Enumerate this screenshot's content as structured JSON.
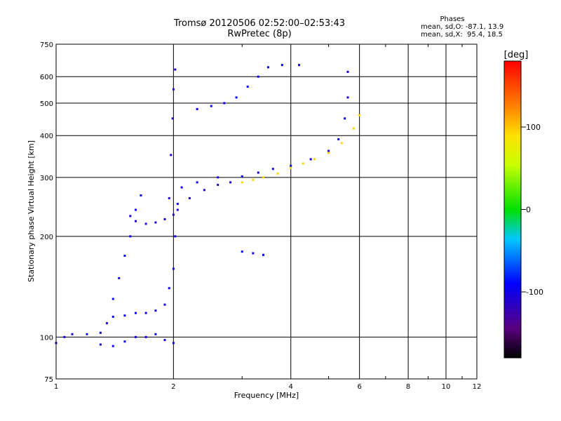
{
  "header": {
    "title": "Tromsø 20120506 02:52:00–02:53:43",
    "subtitle": "RwPretec (8p)"
  },
  "phases": {
    "heading": "Phases",
    "line1": "mean, sd,O: -87.1, 13.9",
    "line2": "mean, sd,X:  95.4, 18.5"
  },
  "colorbar": {
    "unit_label": "[deg]",
    "ticks": [
      "100",
      "0",
      "-100"
    ],
    "tick_values": [
      100,
      0,
      -100
    ],
    "range": [
      -180,
      180
    ]
  },
  "chart_data": {
    "type": "scatter",
    "xlabel": "Frequency [MHz]",
    "ylabel": "Stationary phase Virtual Height [km]",
    "xscale": "log",
    "yscale": "log",
    "xlim": [
      1,
      12
    ],
    "ylim": [
      75,
      750
    ],
    "xticks": [
      1,
      2,
      4,
      6,
      8,
      10,
      12
    ],
    "yticks": [
      75,
      100,
      200,
      300,
      400,
      500,
      600,
      750
    ],
    "grid": true,
    "colorbar": true,
    "traces": [
      {
        "name": "",
        "phase": -100,
        "points": [
          [
            1.0,
            96
          ],
          [
            1.05,
            100
          ],
          [
            1.1,
            102
          ],
          [
            1.2,
            102
          ],
          [
            1.3,
            103
          ],
          [
            1.35,
            110
          ],
          [
            1.4,
            115
          ],
          [
            1.5,
            116
          ],
          [
            1.6,
            118
          ],
          [
            1.7,
            118
          ],
          [
            1.8,
            120
          ],
          [
            1.9,
            125
          ],
          [
            1.95,
            140
          ],
          [
            2.0,
            160
          ],
          [
            2.02,
            200
          ],
          [
            2.05,
            250
          ],
          [
            2.1,
            280
          ],
          [
            2.3,
            290
          ],
          [
            2.6,
            300
          ],
          [
            3.0,
            302
          ],
          [
            3.3,
            310
          ],
          [
            3.6,
            318
          ],
          [
            4.0,
            325
          ],
          [
            4.5,
            340
          ],
          [
            5.0,
            360
          ],
          [
            5.3,
            390
          ],
          [
            5.5,
            450
          ],
          [
            5.6,
            520
          ],
          [
            5.6,
            620
          ]
        ]
      },
      {
        "name": "",
        "phase": -110,
        "points": [
          [
            1.55,
            230
          ],
          [
            1.6,
            222
          ],
          [
            1.7,
            218
          ],
          [
            1.8,
            220
          ],
          [
            1.9,
            225
          ],
          [
            2.0,
            232
          ],
          [
            2.05,
            240
          ],
          [
            2.2,
            260
          ],
          [
            2.4,
            275
          ],
          [
            2.6,
            285
          ],
          [
            2.8,
            290
          ]
        ]
      },
      {
        "name": "",
        "phase": -110,
        "points": [
          [
            1.95,
            260
          ],
          [
            1.97,
            350
          ],
          [
            1.99,
            450
          ],
          [
            2.0,
            550
          ],
          [
            2.02,
            630
          ]
        ]
      },
      {
        "name": "",
        "phase": -95,
        "points": [
          [
            2.3,
            480
          ],
          [
            2.5,
            490
          ],
          [
            2.7,
            500
          ],
          [
            2.9,
            520
          ],
          [
            3.1,
            560
          ],
          [
            3.3,
            600
          ],
          [
            3.5,
            640
          ],
          [
            3.8,
            650
          ],
          [
            4.2,
            650
          ]
        ]
      },
      {
        "name": "",
        "phase": 95,
        "points": [
          [
            3.0,
            290
          ],
          [
            3.2,
            295
          ],
          [
            3.4,
            300
          ],
          [
            3.7,
            308
          ],
          [
            4.0,
            320
          ],
          [
            4.3,
            330
          ],
          [
            4.6,
            340
          ],
          [
            5.0,
            355
          ],
          [
            5.4,
            380
          ],
          [
            5.8,
            420
          ],
          [
            6.0,
            460
          ]
        ]
      },
      {
        "name": "",
        "phase": -100,
        "points": [
          [
            1.3,
            95
          ],
          [
            1.4,
            94
          ],
          [
            1.5,
            97
          ],
          [
            1.6,
            100
          ],
          [
            1.7,
            100
          ],
          [
            1.8,
            102
          ],
          [
            1.9,
            98
          ],
          [
            2.0,
            96
          ]
        ]
      },
      {
        "name": "",
        "phase": -100,
        "points": [
          [
            1.4,
            130
          ],
          [
            1.45,
            150
          ],
          [
            1.5,
            175
          ],
          [
            1.55,
            200
          ],
          [
            1.6,
            240
          ],
          [
            1.65,
            265
          ]
        ]
      },
      {
        "name": "",
        "phase": -90,
        "points": [
          [
            3.0,
            180
          ],
          [
            3.2,
            178
          ],
          [
            3.4,
            176
          ]
        ]
      }
    ]
  }
}
